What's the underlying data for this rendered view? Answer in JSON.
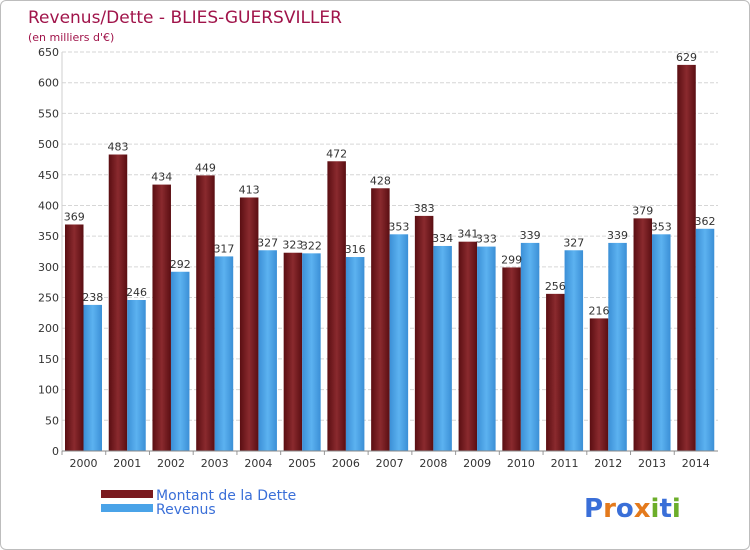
{
  "chart_data": {
    "type": "bar",
    "title": "Revenus/Dette - BLIES-GUERSVILLER",
    "subtitle": "(en milliers d'€)",
    "categories": [
      "2000",
      "2001",
      "2002",
      "2003",
      "2004",
      "2005",
      "2006",
      "2007",
      "2008",
      "2009",
      "2010",
      "2011",
      "2012",
      "2013",
      "2014"
    ],
    "series": [
      {
        "name": "Montant de la Dette",
        "color": "#7a1a1f",
        "values": [
          369,
          483,
          434,
          449,
          413,
          323,
          472,
          428,
          383,
          341,
          299,
          256,
          216,
          379,
          629
        ]
      },
      {
        "name": "Revenus",
        "color": "#4aa3e8",
        "values": [
          238,
          246,
          292,
          317,
          327,
          322,
          316,
          353,
          334,
          333,
          339,
          327,
          339,
          353,
          362
        ]
      }
    ],
    "ylim": [
      0,
      650
    ],
    "yticks": [
      0,
      50,
      100,
      150,
      200,
      250,
      300,
      350,
      400,
      450,
      500,
      550,
      600,
      650
    ],
    "grid": true,
    "legend_position": "bottom-left"
  },
  "logo": {
    "text": "Proxiti"
  }
}
